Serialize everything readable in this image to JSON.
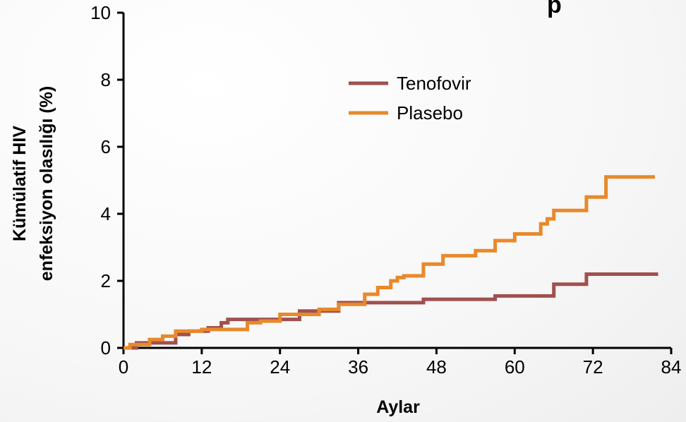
{
  "chart_data": {
    "type": "line",
    "title_fragment": "p",
    "xlabel": "Aylar",
    "ylabel_lines": [
      "Kümülatif HIV",
      "enfeksiyon olasılığı (%)"
    ],
    "xlim": [
      0,
      84
    ],
    "ylim": [
      0,
      10
    ],
    "x_ticks": [
      0,
      12,
      24,
      36,
      48,
      60,
      72,
      84
    ],
    "y_ticks": [
      0,
      2,
      4,
      6,
      8,
      10
    ],
    "legend_position": "upper-center",
    "series": [
      {
        "name": "Tenofovir",
        "color": "#a0504f",
        "x": [
          0,
          2,
          8,
          10,
          13,
          15,
          16,
          27,
          33,
          36,
          46,
          57,
          66,
          71,
          82
        ],
        "y": [
          0,
          0.15,
          0.4,
          0.5,
          0.6,
          0.75,
          0.85,
          1.1,
          1.35,
          1.35,
          1.45,
          1.55,
          1.9,
          2.2,
          2.2
        ]
      },
      {
        "name": "Plasebo",
        "color": "#e8892a",
        "x": [
          0,
          1,
          4,
          6,
          8,
          12,
          14,
          19,
          21,
          24,
          30,
          33,
          37,
          39,
          41,
          42,
          43,
          46,
          49,
          54,
          57,
          60,
          64,
          65,
          66,
          71,
          74,
          81.5
        ],
        "y": [
          0,
          0.1,
          0.25,
          0.35,
          0.5,
          0.55,
          0.55,
          0.75,
          0.8,
          1.0,
          1.15,
          1.3,
          1.6,
          1.8,
          2.0,
          2.1,
          2.15,
          2.5,
          2.75,
          2.9,
          3.2,
          3.4,
          3.7,
          3.85,
          4.1,
          4.5,
          5.1,
          5.1
        ]
      }
    ]
  }
}
